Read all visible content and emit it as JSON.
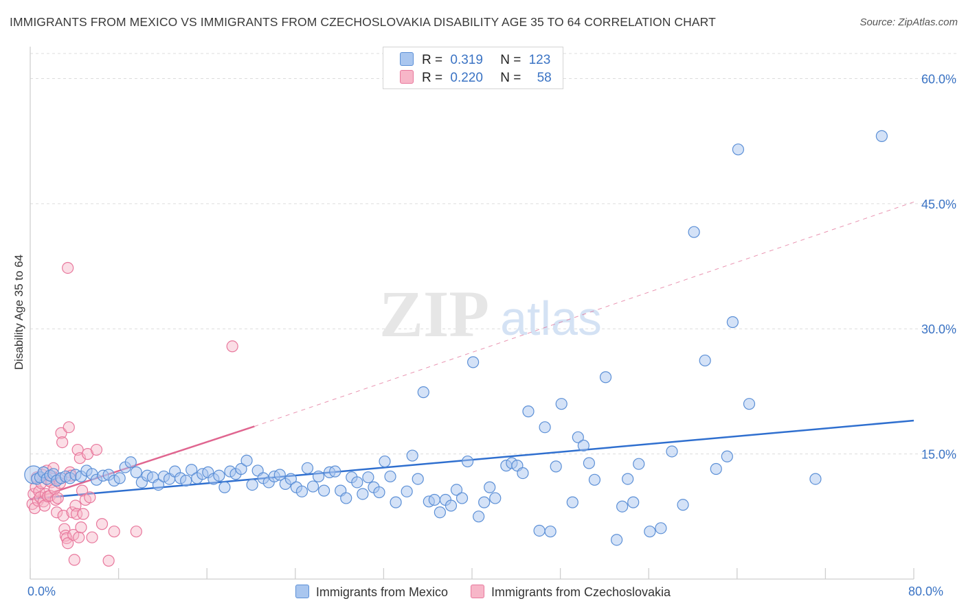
{
  "title": "IMMIGRANTS FROM MEXICO VS IMMIGRANTS FROM CZECHOSLOVAKIA DISABILITY AGE 35 TO 64 CORRELATION CHART",
  "source": "Source: ZipAtlas.com",
  "watermark": {
    "zip": "ZIP",
    "atlas": "atlas"
  },
  "colors": {
    "mexico_fill": "#a9c6ef",
    "mexico_stroke": "#5b8fd6",
    "mexico_line": "#2f6fcf",
    "czech_fill": "#f7b6c8",
    "czech_stroke": "#e8779c",
    "czech_line": "#e06690",
    "axis_label": "#3a73c4",
    "grid": "#dcdcdc"
  },
  "legend_top": {
    "rows": [
      {
        "r_label": "R =",
        "r_value": "0.319",
        "n_label": "N =",
        "n_value": "123"
      },
      {
        "r_label": "R =",
        "r_value": "0.220",
        "n_label": "N =",
        "n_value": "58"
      }
    ]
  },
  "chart_data": {
    "type": "scatter",
    "title": "IMMIGRANTS FROM MEXICO VS IMMIGRANTS FROM CZECHOSLOVAKIA DISABILITY AGE 35 TO 64 CORRELATION CHART",
    "xlabel": "",
    "ylabel": "Disability Age 35 to 64",
    "xlim": [
      0,
      80
    ],
    "ylim": [
      0,
      63
    ],
    "x_tick_labels": {
      "left": "0.0%",
      "right": "80.0%"
    },
    "y_ticks": [
      15,
      30,
      45,
      60
    ],
    "y_tick_labels": [
      "15.0%",
      "30.0%",
      "45.0%",
      "60.0%"
    ],
    "grid": true,
    "legend": [
      "Immigrants from Mexico",
      "Immigrants from Czechoslovakia"
    ],
    "series": [
      {
        "name": "Immigrants from Mexico",
        "r": 0.319,
        "n": 123,
        "trend": {
          "x": [
            0,
            80
          ],
          "y": [
            9.6,
            19.0
          ],
          "style": "solid"
        },
        "points": [
          [
            0.3,
            12.5
          ],
          [
            0.6,
            12.0
          ],
          [
            0.9,
            12.2
          ],
          [
            1.2,
            12.8
          ],
          [
            1.5,
            12.0
          ],
          [
            1.8,
            12.4
          ],
          [
            2.1,
            12.6
          ],
          [
            2.4,
            11.8
          ],
          [
            2.8,
            12.1
          ],
          [
            3.2,
            12.3
          ],
          [
            3.6,
            12.1
          ],
          [
            4.1,
            12.5
          ],
          [
            4.6,
            12.3
          ],
          [
            5.1,
            13.0
          ],
          [
            5.6,
            12.6
          ],
          [
            6.0,
            11.9
          ],
          [
            6.6,
            12.4
          ],
          [
            7.1,
            12.5
          ],
          [
            7.6,
            11.8
          ],
          [
            8.1,
            12.1
          ],
          [
            8.6,
            13.4
          ],
          [
            9.1,
            14.0
          ],
          [
            9.6,
            12.8
          ],
          [
            10.1,
            11.6
          ],
          [
            10.6,
            12.4
          ],
          [
            11.1,
            12.2
          ],
          [
            11.6,
            11.3
          ],
          [
            12.1,
            12.3
          ],
          [
            12.6,
            12.0
          ],
          [
            13.1,
            12.9
          ],
          [
            13.6,
            12.1
          ],
          [
            14.1,
            11.8
          ],
          [
            14.6,
            13.1
          ],
          [
            15.1,
            12.1
          ],
          [
            15.6,
            12.6
          ],
          [
            16.1,
            12.8
          ],
          [
            16.6,
            12.0
          ],
          [
            17.1,
            12.4
          ],
          [
            17.6,
            11.0
          ],
          [
            18.1,
            12.9
          ],
          [
            18.6,
            12.6
          ],
          [
            19.1,
            13.2
          ],
          [
            19.6,
            14.2
          ],
          [
            20.1,
            11.3
          ],
          [
            20.6,
            13.0
          ],
          [
            21.1,
            12.1
          ],
          [
            21.6,
            11.6
          ],
          [
            22.1,
            12.3
          ],
          [
            22.6,
            12.5
          ],
          [
            23.1,
            11.4
          ],
          [
            23.6,
            12.0
          ],
          [
            24.1,
            11.0
          ],
          [
            24.6,
            10.5
          ],
          [
            25.1,
            13.3
          ],
          [
            25.6,
            11.1
          ],
          [
            26.1,
            12.3
          ],
          [
            26.6,
            10.6
          ],
          [
            27.1,
            12.8
          ],
          [
            27.6,
            12.9
          ],
          [
            28.1,
            10.6
          ],
          [
            28.6,
            9.7
          ],
          [
            29.1,
            12.2
          ],
          [
            29.6,
            11.6
          ],
          [
            30.1,
            10.2
          ],
          [
            30.6,
            12.2
          ],
          [
            31.1,
            11.0
          ],
          [
            31.6,
            10.4
          ],
          [
            32.1,
            14.1
          ],
          [
            32.6,
            12.3
          ],
          [
            33.1,
            9.2
          ],
          [
            34.1,
            10.5
          ],
          [
            34.6,
            14.8
          ],
          [
            35.1,
            12.0
          ],
          [
            35.6,
            22.4
          ],
          [
            36.1,
            9.3
          ],
          [
            36.6,
            9.5
          ],
          [
            37.1,
            8.0
          ],
          [
            37.6,
            9.5
          ],
          [
            38.1,
            8.8
          ],
          [
            38.6,
            10.7
          ],
          [
            39.1,
            9.7
          ],
          [
            39.6,
            14.1
          ],
          [
            40.1,
            26.0
          ],
          [
            40.6,
            7.5
          ],
          [
            41.1,
            9.2
          ],
          [
            41.6,
            11.0
          ],
          [
            42.1,
            9.7
          ],
          [
            43.1,
            13.6
          ],
          [
            43.6,
            13.9
          ],
          [
            44.1,
            13.6
          ],
          [
            44.6,
            12.7
          ],
          [
            45.1,
            20.1
          ],
          [
            46.1,
            5.8
          ],
          [
            46.6,
            18.2
          ],
          [
            47.1,
            5.7
          ],
          [
            47.6,
            13.5
          ],
          [
            48.1,
            21.0
          ],
          [
            49.1,
            9.2
          ],
          [
            49.6,
            17.0
          ],
          [
            50.1,
            16.0
          ],
          [
            50.6,
            13.9
          ],
          [
            51.1,
            11.9
          ],
          [
            52.1,
            24.2
          ],
          [
            53.1,
            4.7
          ],
          [
            53.6,
            8.7
          ],
          [
            54.1,
            12.0
          ],
          [
            54.6,
            9.2
          ],
          [
            55.1,
            13.8
          ],
          [
            56.1,
            5.7
          ],
          [
            57.1,
            6.1
          ],
          [
            58.1,
            15.3
          ],
          [
            59.1,
            8.9
          ],
          [
            60.1,
            41.6
          ],
          [
            61.1,
            26.2
          ],
          [
            62.1,
            13.2
          ],
          [
            63.1,
            14.7
          ],
          [
            63.6,
            30.8
          ],
          [
            64.1,
            51.5
          ],
          [
            65.1,
            21.0
          ],
          [
            71.1,
            12.0
          ],
          [
            77.1,
            53.1
          ]
        ]
      },
      {
        "name": "Immigrants from Czechoslovakia",
        "r": 0.22,
        "n": 58,
        "trend": {
          "x": [
            0,
            20.3
          ],
          "y": [
            9.5,
            18.3
          ],
          "style": "solid",
          "extended_to": [
            80,
            45.2
          ],
          "extended_style": "dashed"
        },
        "points": [
          [
            0.2,
            9.0
          ],
          [
            0.3,
            10.2
          ],
          [
            0.4,
            8.5
          ],
          [
            0.5,
            11.0
          ],
          [
            0.6,
            12.2
          ],
          [
            0.7,
            9.4
          ],
          [
            0.8,
            10.5
          ],
          [
            0.9,
            9.8
          ],
          [
            1.0,
            11.5
          ],
          [
            1.1,
            12.5
          ],
          [
            1.2,
            9.3
          ],
          [
            1.3,
            8.8
          ],
          [
            1.4,
            10.2
          ],
          [
            1.5,
            13.0
          ],
          [
            1.6,
            9.9
          ],
          [
            1.7,
            11.8
          ],
          [
            1.8,
            10.0
          ],
          [
            1.9,
            11.6
          ],
          [
            2.0,
            12.3
          ],
          [
            2.1,
            13.3
          ],
          [
            2.2,
            10.8
          ],
          [
            2.3,
            9.5
          ],
          [
            2.4,
            8.0
          ],
          [
            2.5,
            9.7
          ],
          [
            2.6,
            12.0
          ],
          [
            2.7,
            11.5
          ],
          [
            2.8,
            17.5
          ],
          [
            2.9,
            16.4
          ],
          [
            3.0,
            7.6
          ],
          [
            3.1,
            6.0
          ],
          [
            3.2,
            5.2
          ],
          [
            3.3,
            4.9
          ],
          [
            3.4,
            4.3
          ],
          [
            3.5,
            18.2
          ],
          [
            3.6,
            12.8
          ],
          [
            3.7,
            12.4
          ],
          [
            3.8,
            8.0
          ],
          [
            3.9,
            5.3
          ],
          [
            4.0,
            2.3
          ],
          [
            4.1,
            8.8
          ],
          [
            4.2,
            7.8
          ],
          [
            4.3,
            15.5
          ],
          [
            4.4,
            5.0
          ],
          [
            4.5,
            14.5
          ],
          [
            4.6,
            6.2
          ],
          [
            4.7,
            10.6
          ],
          [
            4.8,
            7.8
          ],
          [
            5.0,
            9.5
          ],
          [
            5.2,
            15.0
          ],
          [
            5.4,
            9.8
          ],
          [
            5.6,
            5.0
          ],
          [
            6.0,
            15.5
          ],
          [
            6.5,
            6.6
          ],
          [
            7.1,
            2.2
          ],
          [
            7.6,
            5.7
          ],
          [
            9.6,
            5.7
          ],
          [
            3.4,
            37.3
          ],
          [
            18.3,
            27.9
          ]
        ]
      }
    ]
  },
  "legend_bottom": {
    "items": [
      {
        "label": "Immigrants from Mexico"
      },
      {
        "label": "Immigrants from Czechoslovakia"
      }
    ]
  }
}
